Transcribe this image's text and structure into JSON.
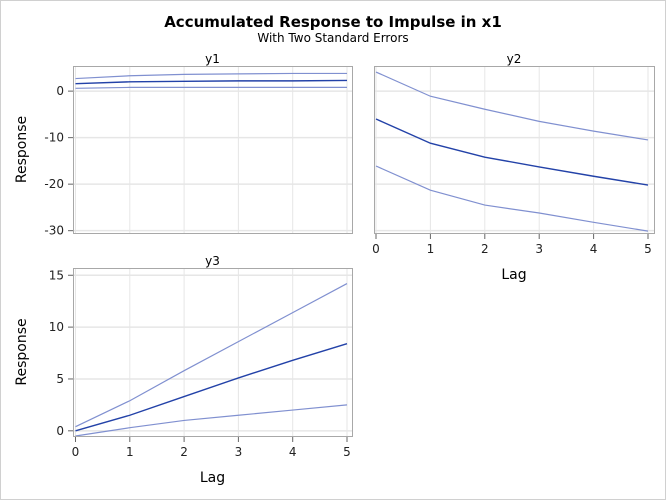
{
  "chart_data": {
    "title": "Accumulated Response to Impulse in x1",
    "subtitle": "With Two Standard Errors",
    "colors": {
      "response": "#2342a8",
      "bands": "#8090d0",
      "frame": "#a8a8a8",
      "grid": "#e6e6e6"
    },
    "panels": [
      {
        "type": "line",
        "title": "y1",
        "xlabel": "",
        "ylabel": "Response",
        "x": [
          0,
          1,
          2,
          3,
          4,
          5
        ],
        "xticks": [
          "0",
          "1",
          "2",
          "3",
          "4",
          "5"
        ],
        "show_xticks": false,
        "yticks": [
          "0",
          "-10",
          "-20",
          "-30"
        ],
        "ytick_values": [
          0,
          -10,
          -20,
          -30
        ],
        "ylim": [
          -30.5,
          5.4
        ],
        "grid": true,
        "series": [
          {
            "name": "upper",
            "values": [
              2.7,
              3.3,
              3.6,
              3.7,
              3.8,
              3.8
            ]
          },
          {
            "name": "response",
            "values": [
              1.6,
              2.0,
              2.1,
              2.2,
              2.2,
              2.3
            ]
          },
          {
            "name": "lower",
            "values": [
              0.6,
              0.8,
              0.8,
              0.8,
              0.8,
              0.8
            ]
          }
        ]
      },
      {
        "type": "line",
        "title": "y2",
        "xlabel": "Lag",
        "ylabel": "",
        "x": [
          0,
          1,
          2,
          3,
          4,
          5
        ],
        "xticks": [
          "0",
          "1",
          "2",
          "3",
          "4",
          "5"
        ],
        "show_xticks": true,
        "yticks": [],
        "ytick_values": [
          0,
          -10,
          -20,
          -30
        ],
        "ylim": [
          -30.5,
          5.4
        ],
        "grid": true,
        "series": [
          {
            "name": "upper",
            "values": [
              4.1,
              -1.1,
              -3.9,
              -6.5,
              -8.6,
              -10.5
            ]
          },
          {
            "name": "response",
            "values": [
              -6.0,
              -11.2,
              -14.2,
              -16.3,
              -18.3,
              -20.2
            ]
          },
          {
            "name": "lower",
            "values": [
              -16.1,
              -21.3,
              -24.5,
              -26.2,
              -28.2,
              -30.1
            ]
          }
        ]
      },
      {
        "type": "line",
        "title": "y3",
        "xlabel": "Lag",
        "ylabel": "Response",
        "x": [
          0,
          1,
          2,
          3,
          4,
          5
        ],
        "xticks": [
          "0",
          "1",
          "2",
          "3",
          "4",
          "5"
        ],
        "show_xticks": true,
        "yticks": [
          "15",
          "10",
          "5",
          "0"
        ],
        "ytick_values": [
          15,
          10,
          5,
          0
        ],
        "ylim": [
          -0.5,
          15.7
        ],
        "grid": true,
        "series": [
          {
            "name": "upper",
            "values": [
              0.4,
              2.9,
              5.8,
              8.6,
              11.4,
              14.2
            ]
          },
          {
            "name": "response",
            "values": [
              0.0,
              1.5,
              3.3,
              5.1,
              6.8,
              8.4
            ]
          },
          {
            "name": "lower",
            "values": [
              -0.5,
              0.3,
              1.0,
              1.5,
              2.0,
              2.5
            ]
          }
        ]
      }
    ]
  }
}
